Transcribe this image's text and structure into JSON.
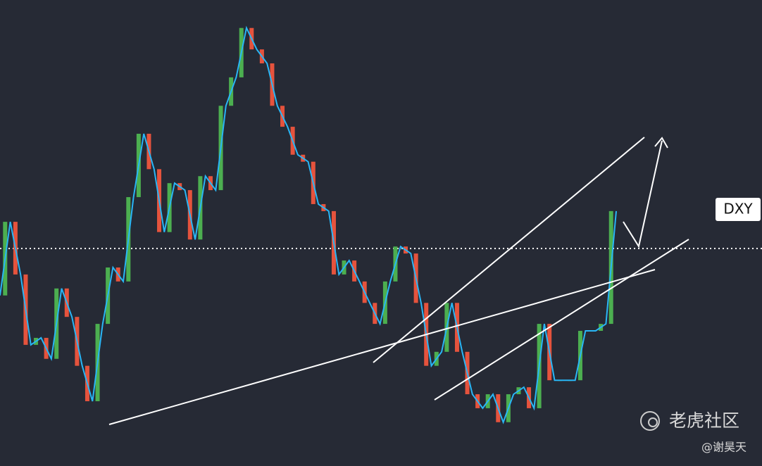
{
  "chart_data": {
    "type": "candlestick",
    "label": "DXY",
    "values": [
      36.6,
      52.4,
      41.1,
      26.0,
      27.5,
      23.0,
      38.1,
      32.0,
      21.5,
      13.9,
      30.5,
      42.6,
      39.6,
      57.7,
      71.3,
      63.7,
      50.2,
      60.7,
      59.2,
      48.6,
      62.2,
      59.2,
      77.3,
      83.4,
      94.0,
      89.4,
      86.4,
      77.3,
      72.8,
      66.8,
      65.3,
      56.2,
      54.7,
      41.1,
      44.1,
      39.6,
      35.0,
      30.5,
      39.6,
      47.1,
      45.6,
      35.0,
      21.5,
      24.5,
      35.0,
      24.5,
      15.4,
      12.4,
      15.4,
      9.4,
      15.4,
      16.9,
      12.4,
      30.5,
      18.4,
      18.4,
      18.4,
      29.0,
      29.0,
      30.5,
      54.7
    ],
    "ylim": [
      0,
      100
    ],
    "up_color": "#4caf50",
    "down_color": "#e5533d",
    "line_color": "#29b6f6"
  },
  "watermark": {
    "brand": "老虎社区",
    "author": "@谢昊天"
  }
}
